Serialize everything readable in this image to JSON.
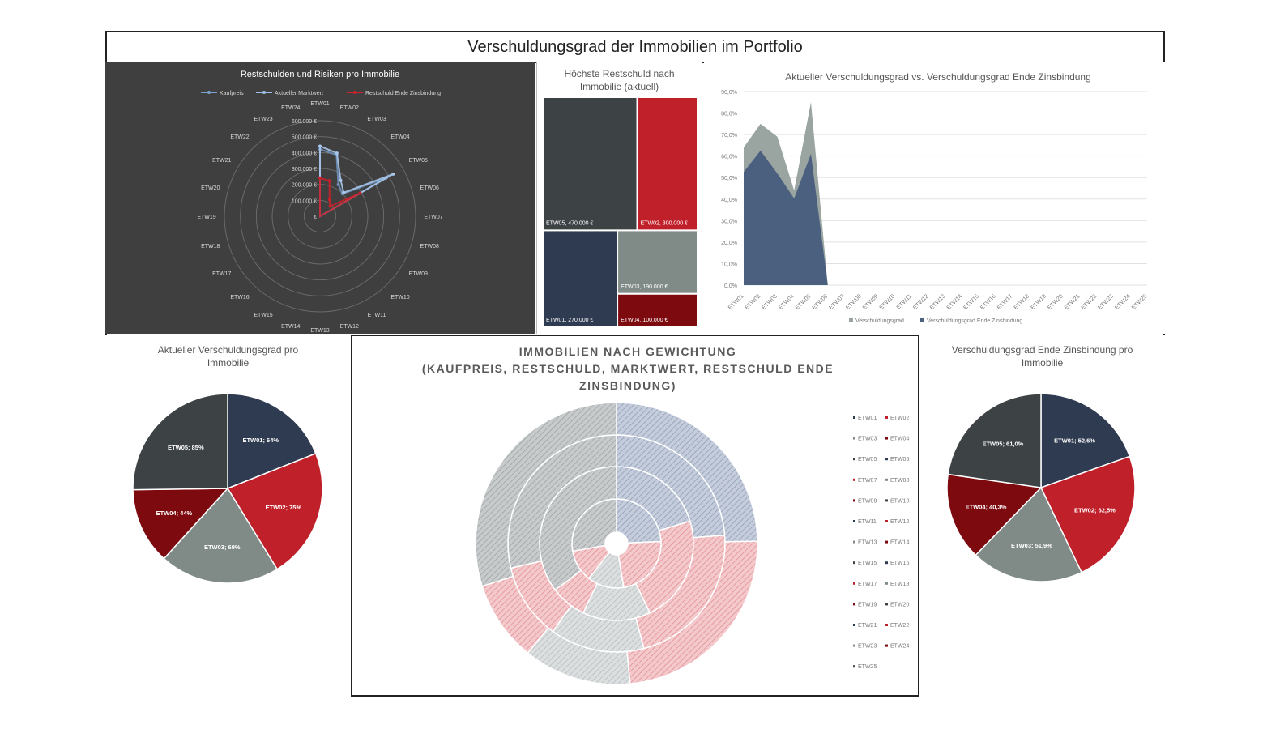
{
  "page_title": "Verschuldungsgrad der Immobilien im Portfolio",
  "colors": {
    "dark": "#3d4244",
    "navy": "#2f3b50",
    "red": "#c0202a",
    "grey": "#808b88",
    "darkred": "#7d0a0f",
    "blue_area": "#4a607e",
    "grey_area": "#9aa5a2"
  },
  "chart_data": [
    {
      "id": "radar",
      "type": "radar",
      "title": "Restschulden und Risiken pro Immobilie",
      "legend": [
        "Kaufpreis",
        "Aktueller Marktwert",
        "Restschuld Ende Zinsbindung"
      ],
      "categories": [
        "ETW01",
        "ETW02",
        "ETW03",
        "ETW04",
        "ETW05",
        "ETW06",
        "ETW07",
        "ETW08",
        "ETW09",
        "ETW10",
        "ETW11",
        "ETW12",
        "ETW13",
        "ETW14",
        "ETW15",
        "ETW16",
        "ETW17",
        "ETW18",
        "ETW19",
        "ETW20",
        "ETW21",
        "ETW22",
        "ETW23",
        "ETW24"
      ],
      "axis_ticks": [
        "€",
        "100.000 €",
        "200.000 €",
        "300.000 €",
        "400.000 €",
        "500.000 €",
        "600.000 €"
      ],
      "ylim": [
        0,
        600000
      ],
      "series": [
        {
          "name": "Kaufpreis",
          "values": [
            420000,
            400000,
            230000,
            200000,
            480000,
            0,
            0,
            0,
            0,
            0,
            0,
            0,
            0,
            0,
            0,
            0,
            0,
            0,
            0,
            0,
            0,
            0,
            0,
            0
          ]
        },
        {
          "name": "Aktueller Marktwert",
          "values": [
            440000,
            410000,
            260000,
            210000,
            530000,
            0,
            0,
            0,
            0,
            0,
            0,
            0,
            0,
            0,
            0,
            0,
            0,
            0,
            0,
            0,
            0,
            0,
            0,
            0
          ]
        },
        {
          "name": "Restschuld Ende Zinsbindung",
          "values": [
            240000,
            230000,
            120000,
            90000,
            290000,
            0,
            0,
            0,
            0,
            0,
            0,
            0,
            0,
            0,
            0,
            0,
            0,
            0,
            0,
            0,
            0,
            0,
            0,
            0
          ]
        }
      ]
    },
    {
      "id": "treemap",
      "type": "treemap",
      "title": "Höchste Restschuld nach Immobilie (aktuell)",
      "items": [
        {
          "label": "ETW05, 470.000 €",
          "value": 470000
        },
        {
          "label": "ETW02, 300.000 €",
          "value": 300000
        },
        {
          "label": "ETW01, 270.000 €",
          "value": 270000
        },
        {
          "label": "ETW03, 190.000 €",
          "value": 190000
        },
        {
          "label": "ETW04, 100.000 €",
          "value": 100000
        }
      ]
    },
    {
      "id": "area",
      "type": "area",
      "title": "Aktueller Verschuldungsgrad vs. Verschuldungsgrad Ende Zinsbindung",
      "categories": [
        "ETW01",
        "ETW02",
        "ETW03",
        "ETW04",
        "ETW05",
        "ETW06",
        "ETW07",
        "ETW08",
        "ETW09",
        "ETW10",
        "ETW11",
        "ETW12",
        "ETW13",
        "ETW14",
        "ETW15",
        "ETW16",
        "ETW17",
        "ETW18",
        "ETW19",
        "ETW20",
        "ETW21",
        "ETW22",
        "ETW23",
        "ETW24",
        "ETW25"
      ],
      "y_ticks": [
        "0,0%",
        "10,0%",
        "20,0%",
        "30,0%",
        "40,0%",
        "50,0%",
        "60,0%",
        "70,0%",
        "80,0%",
        "90,0%"
      ],
      "ylim": [
        0,
        90
      ],
      "series": [
        {
          "name": "Verschuldungsgrad",
          "values": [
            64,
            75,
            69,
            44,
            85,
            0,
            0,
            0,
            0,
            0,
            0,
            0,
            0,
            0,
            0,
            0,
            0,
            0,
            0,
            0,
            0,
            0,
            0,
            0,
            0
          ]
        },
        {
          "name": "Verschuldungsgrad Ende Zinsbindung",
          "values": [
            52.6,
            62.5,
            51.9,
            40.3,
            61.0,
            0,
            0,
            0,
            0,
            0,
            0,
            0,
            0,
            0,
            0,
            0,
            0,
            0,
            0,
            0,
            0,
            0,
            0,
            0,
            0
          ]
        }
      ]
    },
    {
      "id": "pie_current",
      "type": "pie",
      "title": "Aktueller Verschuldungsgrad pro Immobilie",
      "slices": [
        {
          "label": "ETW01; 64%",
          "value": 64,
          "color": "navy"
        },
        {
          "label": "ETW02; 75%",
          "value": 75,
          "color": "red"
        },
        {
          "label": "ETW03; 69%",
          "value": 69,
          "color": "grey"
        },
        {
          "label": "ETW04; 44%",
          "value": 44,
          "color": "darkred"
        },
        {
          "label": "ETW05; 85%",
          "value": 85,
          "color": "dark"
        }
      ]
    },
    {
      "id": "sunburst",
      "type": "sunburst",
      "title_lines": [
        "IMMOBILIEN NACH GEWICHTUNG",
        "(KAUFPREIS, RESTSCHULD, MARKTWERT, RESTSCHULD ENDE",
        "ZINSBINDUNG)"
      ],
      "legend": [
        "ETW01",
        "ETW02",
        "ETW03",
        "ETW04",
        "ETW05",
        "ETW06",
        "ETW07",
        "ETW08",
        "ETW09",
        "ETW10",
        "ETW11",
        "ETW12",
        "ETW13",
        "ETW14",
        "ETW15",
        "ETW16",
        "ETW17",
        "ETW18",
        "ETW19",
        "ETW20",
        "ETW21",
        "ETW22",
        "ETW23",
        "ETW24",
        "ETW25"
      ],
      "rings": [
        {
          "name": "Kaufpreis",
          "values": [
            420000,
            400000,
            230000,
            200000,
            480000
          ]
        },
        {
          "name": "Restschuld",
          "values": [
            270000,
            300000,
            190000,
            100000,
            470000
          ]
        },
        {
          "name": "Marktwert",
          "values": [
            440000,
            410000,
            260000,
            210000,
            530000
          ]
        },
        {
          "name": "Restschuld Ende Zinsbindung",
          "values": [
            240000,
            230000,
            120000,
            90000,
            290000
          ]
        }
      ]
    },
    {
      "id": "pie_end",
      "type": "pie",
      "title": "Verschuldungsgrad Ende Zinsbindung pro Immobilie",
      "slices": [
        {
          "label": "ETW01; 52,6%",
          "value": 52.6,
          "color": "navy"
        },
        {
          "label": "ETW02; 62,5%",
          "value": 62.5,
          "color": "red"
        },
        {
          "label": "ETW03; 51,9%",
          "value": 51.9,
          "color": "grey"
        },
        {
          "label": "ETW04; 40,3%",
          "value": 40.3,
          "color": "darkred"
        },
        {
          "label": "ETW05; 61,0%",
          "value": 61.0,
          "color": "dark"
        }
      ]
    }
  ]
}
